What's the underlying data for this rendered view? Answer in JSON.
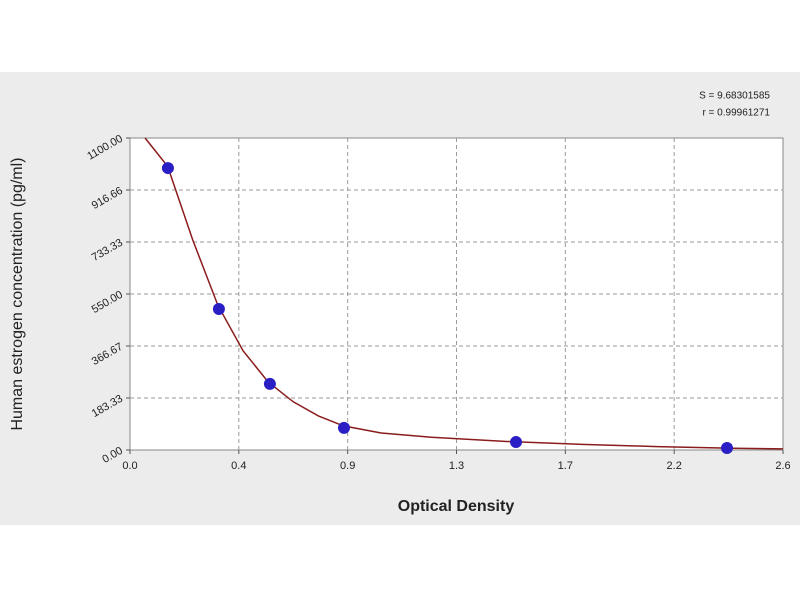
{
  "chart_data": {
    "type": "scatter",
    "x_label": "Optical Density",
    "y_label": "Human estrogen concentration (pg/ml)",
    "annotations": [
      "S = 9.68301585",
      "r = 0.99961271"
    ],
    "xlim": [
      0,
      2.6
    ],
    "xticks": [
      {
        "value": 0,
        "label": "0.0"
      },
      {
        "value": 0.4333,
        "label": "0.4"
      },
      {
        "value": 0.8667,
        "label": "0.9"
      },
      {
        "value": 1.3,
        "label": "1.3"
      },
      {
        "value": 1.7333,
        "label": "1.7"
      },
      {
        "value": 2.1667,
        "label": "2.2"
      },
      {
        "value": 2.6,
        "label": "2.6"
      }
    ],
    "ylim": [
      0,
      1100
    ],
    "yticks": [
      {
        "value": 0,
        "label": "0.00"
      },
      183.33,
      366.67,
      {
        "value": 550,
        "label": "550.00"
      },
      733.33,
      916.66,
      {
        "value": 1100,
        "label": "1100.00"
      }
    ],
    "grid": true,
    "series": [
      {
        "type": "scatter",
        "color": "#2a1fc4",
        "x": [
          0.151,
          0.354,
          0.557,
          0.852,
          1.537,
          2.377
        ],
        "values": [
          994,
          497,
          233,
          78,
          28,
          7
        ]
      },
      {
        "type": "line",
        "color": "#8b1c1c",
        "x": [
          0.06,
          0.15,
          0.25,
          0.35,
          0.45,
          0.55,
          0.65,
          0.75,
          0.85,
          1.0,
          1.2,
          1.5,
          1.8,
          2.1,
          2.4,
          2.6
        ],
        "values": [
          1100,
          1000,
          740,
          510,
          350,
          240,
          170,
          120,
          85,
          60,
          45,
          30,
          20,
          12,
          6,
          4
        ]
      }
    ]
  }
}
